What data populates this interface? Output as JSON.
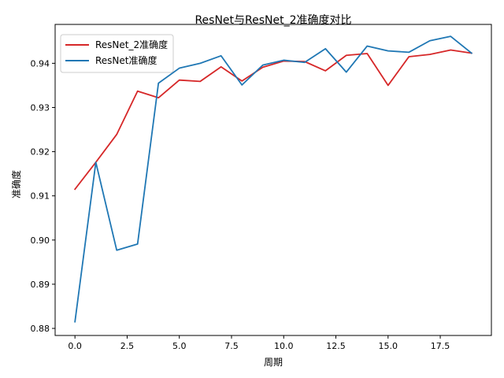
{
  "chart_data": {
    "type": "line",
    "title": "ResNet与ResNet_2准确度对比",
    "xlabel": "周期",
    "ylabel": "准确度",
    "xlim": [
      -0.95,
      19.95
    ],
    "ylim": [
      0.8784,
      0.9488
    ],
    "xticks": [
      0.0,
      2.5,
      5.0,
      7.5,
      10.0,
      12.5,
      15.0,
      17.5
    ],
    "xtick_labels": [
      "0.0",
      "2.5",
      "5.0",
      "7.5",
      "10.0",
      "12.5",
      "15.0",
      "17.5"
    ],
    "yticks": [
      0.88,
      0.89,
      0.9,
      0.91,
      0.92,
      0.93,
      0.94
    ],
    "ytick_labels": [
      "0.88",
      "0.89",
      "0.90",
      "0.91",
      "0.92",
      "0.93",
      "0.94"
    ],
    "grid": false,
    "legend_position": "top-left",
    "x": [
      0,
      1,
      2,
      3,
      4,
      5,
      6,
      7,
      8,
      9,
      10,
      11,
      12,
      13,
      14,
      15,
      16,
      17,
      18,
      19
    ],
    "series": [
      {
        "name": "ResNet_2准确度",
        "color": "#d62728",
        "values": [
          0.9115,
          0.9176,
          0.9239,
          0.9337,
          0.9322,
          0.9362,
          0.9359,
          0.9392,
          0.936,
          0.9391,
          0.9405,
          0.9404,
          0.9383,
          0.9418,
          0.9422,
          0.935,
          0.9415,
          0.942,
          0.943,
          0.9423
        ]
      },
      {
        "name": "ResNet准确度",
        "color": "#1f77b4",
        "values": [
          0.8815,
          0.9176,
          0.8977,
          0.8991,
          0.9355,
          0.9389,
          0.94,
          0.9417,
          0.9351,
          0.9396,
          0.9407,
          0.9402,
          0.9433,
          0.938,
          0.9439,
          0.9428,
          0.9425,
          0.9451,
          0.9461,
          0.9423
        ]
      }
    ]
  }
}
